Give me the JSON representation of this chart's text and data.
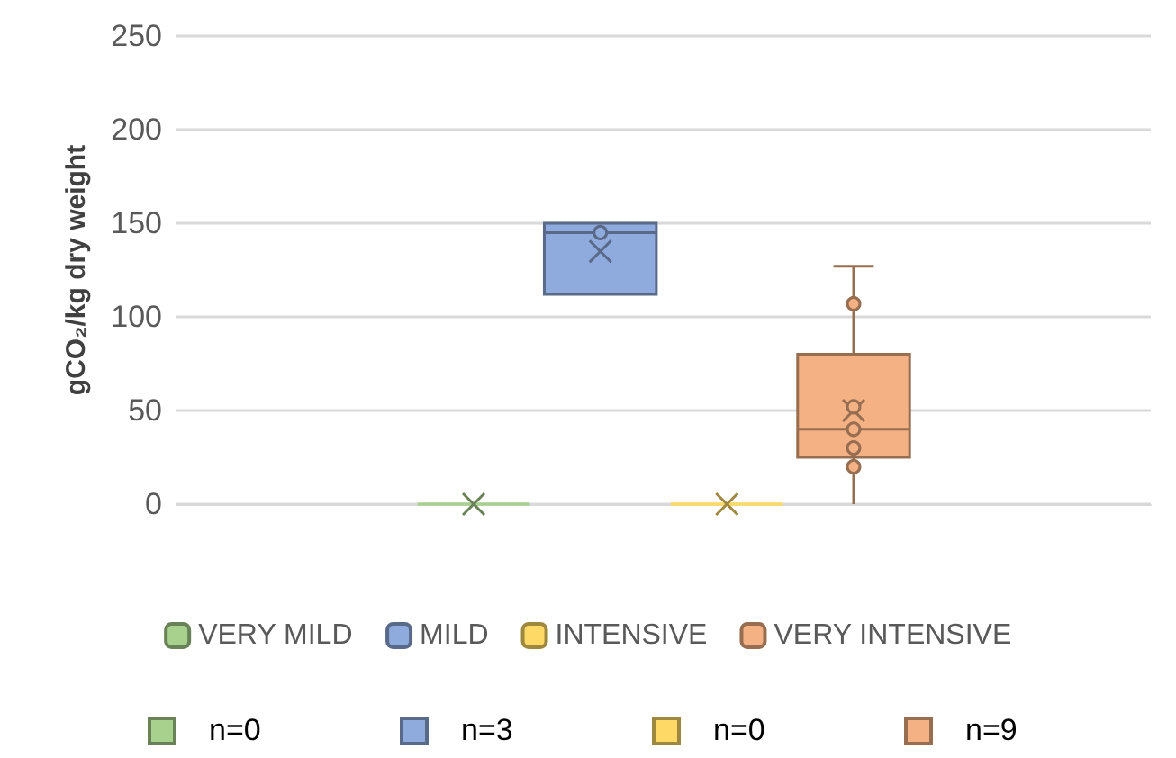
{
  "chart_data": {
    "type": "box",
    "ylabel": "gCO₂/kg dry weight",
    "categories": [
      null
    ],
    "series": [
      {
        "name": "VERY MILD",
        "color": "#a9d18e",
        "boxes": [
          {
            "low": 0,
            "q1": 0,
            "median": 0,
            "q3": 0,
            "high": 0,
            "mean": 0
          }
        ]
      },
      {
        "name": "MILD",
        "color": "#8faadc",
        "boxes": [
          {
            "low": 112,
            "q1": 112,
            "median": 145,
            "q3": 150,
            "high": 150,
            "mean": 135,
            "outliers": [
              145
            ]
          }
        ]
      },
      {
        "name": "INTENSIVE",
        "color": "#ffd966",
        "boxes": [
          {
            "low": 0,
            "q1": 0,
            "median": 0,
            "q3": 0,
            "high": 0,
            "mean": 0
          }
        ]
      },
      {
        "name": "VERY INTENSIVE",
        "color": "#f4b183",
        "boxes": [
          {
            "low": 0,
            "q1": 25,
            "median": 40,
            "q3": 80,
            "high": 127,
            "mean": 50,
            "outliers": [
              107,
              52,
              40,
              30,
              20
            ]
          }
        ]
      }
    ],
    "annotations": [
      "n=0",
      "n=3",
      "n=0",
      "n=9"
    ],
    "ylim": [
      0,
      250
    ],
    "yticks": [
      0,
      50,
      100,
      150,
      200,
      250
    ],
    "grid": "y",
    "legend": "bottom",
    "tick_labels": "y",
    "marker": "circle"
  }
}
